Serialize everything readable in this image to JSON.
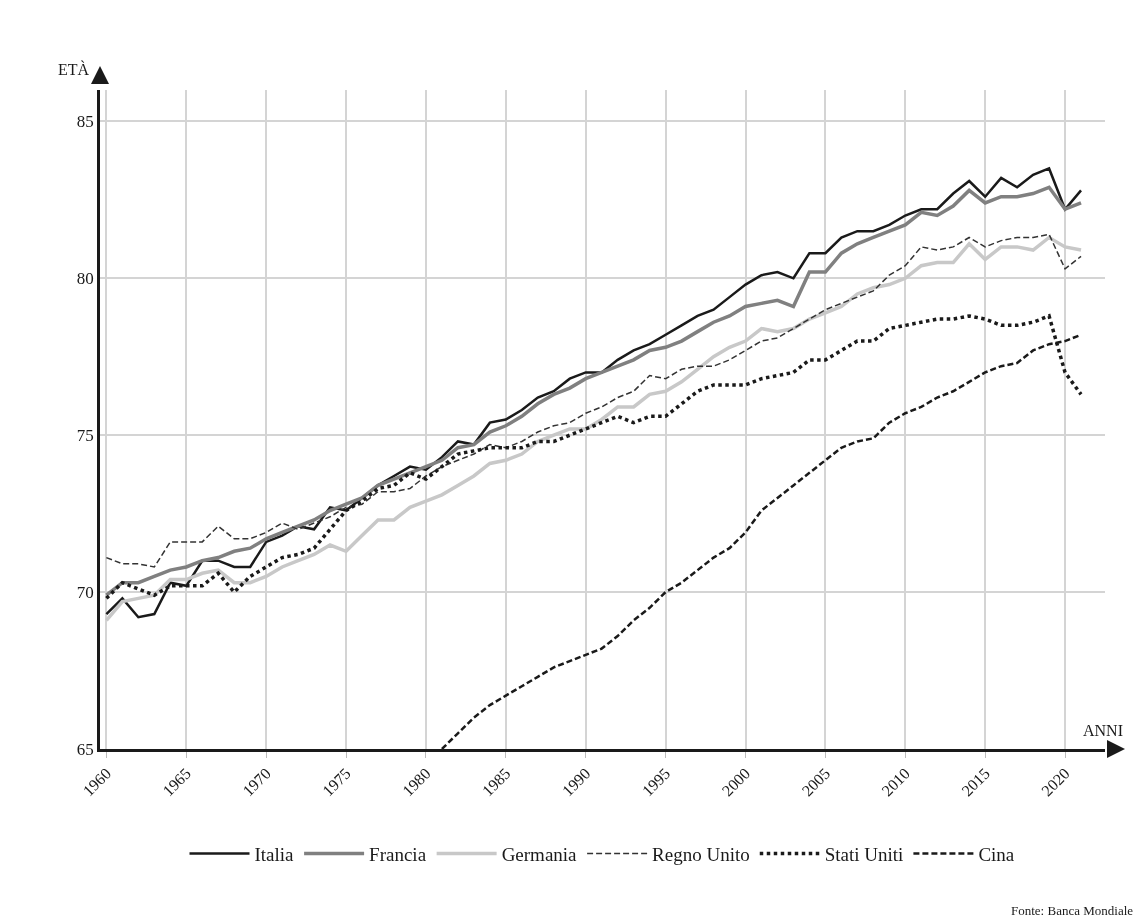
{
  "chart_data": {
    "type": "line",
    "xlabel": "ANNI",
    "ylabel": "ETÀ",
    "x": [
      1960,
      1961,
      1962,
      1963,
      1964,
      1965,
      1966,
      1967,
      1968,
      1969,
      1970,
      1971,
      1972,
      1973,
      1974,
      1975,
      1976,
      1977,
      1978,
      1979,
      1980,
      1981,
      1982,
      1983,
      1984,
      1985,
      1986,
      1987,
      1988,
      1989,
      1990,
      1991,
      1992,
      1993,
      1994,
      1995,
      1996,
      1997,
      1998,
      1999,
      2000,
      2001,
      2002,
      2003,
      2004,
      2005,
      2006,
      2007,
      2008,
      2009,
      2010,
      2011,
      2012,
      2013,
      2014,
      2015,
      2016,
      2017,
      2018,
      2019,
      2020,
      2021
    ],
    "series": [
      {
        "name": "Italia",
        "color": "#1a1a1a",
        "line_style": "solid",
        "values": [
          69.3,
          69.8,
          69.2,
          69.3,
          70.3,
          70.2,
          71.0,
          71.0,
          70.8,
          70.8,
          71.6,
          71.8,
          72.1,
          72.0,
          72.7,
          72.6,
          73.0,
          73.4,
          73.7,
          74.0,
          73.9,
          74.3,
          74.8,
          74.7,
          75.4,
          75.5,
          75.8,
          76.2,
          76.4,
          76.8,
          77.0,
          77.0,
          77.4,
          77.7,
          77.9,
          78.2,
          78.5,
          78.8,
          79.0,
          79.4,
          79.8,
          80.1,
          80.2,
          80.0,
          80.8,
          80.8,
          81.3,
          81.5,
          81.5,
          81.7,
          82.0,
          82.2,
          82.2,
          82.7,
          83.1,
          82.6,
          83.2,
          82.9,
          83.3,
          83.5,
          82.2,
          82.8
        ]
      },
      {
        "name": "Francia",
        "color": "#808080",
        "line_style": "solid",
        "values": [
          69.9,
          70.3,
          70.3,
          70.5,
          70.7,
          70.8,
          71.0,
          71.1,
          71.3,
          71.4,
          71.7,
          71.9,
          72.1,
          72.3,
          72.6,
          72.8,
          73.0,
          73.4,
          73.6,
          73.8,
          74.0,
          74.2,
          74.6,
          74.7,
          75.1,
          75.3,
          75.6,
          76.0,
          76.3,
          76.5,
          76.8,
          77.0,
          77.2,
          77.4,
          77.7,
          77.8,
          78.0,
          78.3,
          78.6,
          78.8,
          79.1,
          79.2,
          79.3,
          79.1,
          80.2,
          80.2,
          80.8,
          81.1,
          81.3,
          81.5,
          81.7,
          82.1,
          82.0,
          82.3,
          82.8,
          82.4,
          82.6,
          82.6,
          82.7,
          82.9,
          82.2,
          82.4
        ]
      },
      {
        "name": "Germania",
        "color": "#c8c8c8",
        "line_style": "solid",
        "values": [
          69.1,
          69.7,
          69.8,
          69.9,
          70.4,
          70.4,
          70.6,
          70.7,
          70.3,
          70.3,
          70.5,
          70.8,
          71.0,
          71.2,
          71.5,
          71.3,
          71.8,
          72.3,
          72.3,
          72.7,
          72.9,
          73.1,
          73.4,
          73.7,
          74.1,
          74.2,
          74.4,
          74.8,
          75.0,
          75.2,
          75.2,
          75.5,
          75.9,
          75.9,
          76.3,
          76.4,
          76.7,
          77.1,
          77.5,
          77.8,
          78.0,
          78.4,
          78.3,
          78.4,
          78.7,
          78.9,
          79.1,
          79.5,
          79.7,
          79.8,
          80.0,
          80.4,
          80.5,
          80.5,
          81.1,
          80.6,
          81.0,
          81.0,
          80.9,
          81.3,
          81.0,
          80.9
        ]
      },
      {
        "name": "Regno Unito",
        "color": "#333333",
        "line_style": "dashed",
        "values": [
          71.1,
          70.9,
          70.9,
          70.8,
          71.6,
          71.6,
          71.6,
          72.1,
          71.7,
          71.7,
          71.9,
          72.2,
          72.0,
          72.2,
          72.4,
          72.7,
          72.8,
          73.2,
          73.2,
          73.3,
          73.7,
          74.0,
          74.2,
          74.4,
          74.7,
          74.6,
          74.8,
          75.1,
          75.3,
          75.4,
          75.7,
          75.9,
          76.2,
          76.4,
          76.9,
          76.8,
          77.1,
          77.2,
          77.2,
          77.4,
          77.7,
          78.0,
          78.1,
          78.4,
          78.7,
          79.0,
          79.2,
          79.4,
          79.6,
          80.1,
          80.4,
          81.0,
          80.9,
          81.0,
          81.3,
          81.0,
          81.2,
          81.3,
          81.3,
          81.4,
          80.3,
          80.7
        ]
      },
      {
        "name": "Stati Uniti",
        "color": "#1a1a1a",
        "line_style": "dotted",
        "values": [
          69.8,
          70.3,
          70.1,
          69.9,
          70.2,
          70.2,
          70.2,
          70.6,
          70.0,
          70.5,
          70.8,
          71.1,
          71.2,
          71.4,
          72.0,
          72.6,
          72.9,
          73.3,
          73.4,
          73.8,
          73.6,
          74.0,
          74.4,
          74.5,
          74.6,
          74.6,
          74.6,
          74.8,
          74.8,
          75.0,
          75.2,
          75.4,
          75.6,
          75.4,
          75.6,
          75.6,
          76.0,
          76.4,
          76.6,
          76.6,
          76.6,
          76.8,
          76.9,
          77.0,
          77.4,
          77.4,
          77.7,
          78.0,
          78.0,
          78.4,
          78.5,
          78.6,
          78.7,
          78.7,
          78.8,
          78.7,
          78.5,
          78.5,
          78.6,
          78.8,
          77.0,
          76.3
        ]
      },
      {
        "name": "Cina",
        "color": "#1a1a1a",
        "line_style": "dashed",
        "values": [
          null,
          null,
          null,
          null,
          null,
          null,
          null,
          null,
          null,
          null,
          null,
          null,
          null,
          null,
          null,
          null,
          null,
          null,
          null,
          null,
          null,
          65.0,
          65.5,
          66.0,
          66.4,
          66.7,
          67.0,
          67.3,
          67.6,
          67.8,
          68.0,
          68.2,
          68.6,
          69.1,
          69.5,
          70.0,
          70.3,
          70.7,
          71.1,
          71.4,
          71.9,
          72.6,
          73.0,
          73.4,
          73.8,
          74.2,
          74.6,
          74.8,
          74.9,
          75.4,
          75.7,
          75.9,
          76.2,
          76.4,
          76.7,
          77.0,
          77.2,
          77.3,
          77.7,
          77.9,
          78.0,
          78.2
        ]
      }
    ],
    "xlim": [
      1959.6,
      2022.5
    ],
    "xticks": [
      1960,
      1965,
      1970,
      1975,
      1980,
      1985,
      1990,
      1995,
      2000,
      2005,
      2010,
      2015,
      2020
    ],
    "ylim": [
      65,
      86
    ],
    "yticks": [
      65,
      70,
      75,
      80,
      85
    ],
    "grid": true,
    "legend": "bottom",
    "marker": "none",
    "annotations": [
      "Fonte: Banca Mondiale"
    ]
  }
}
